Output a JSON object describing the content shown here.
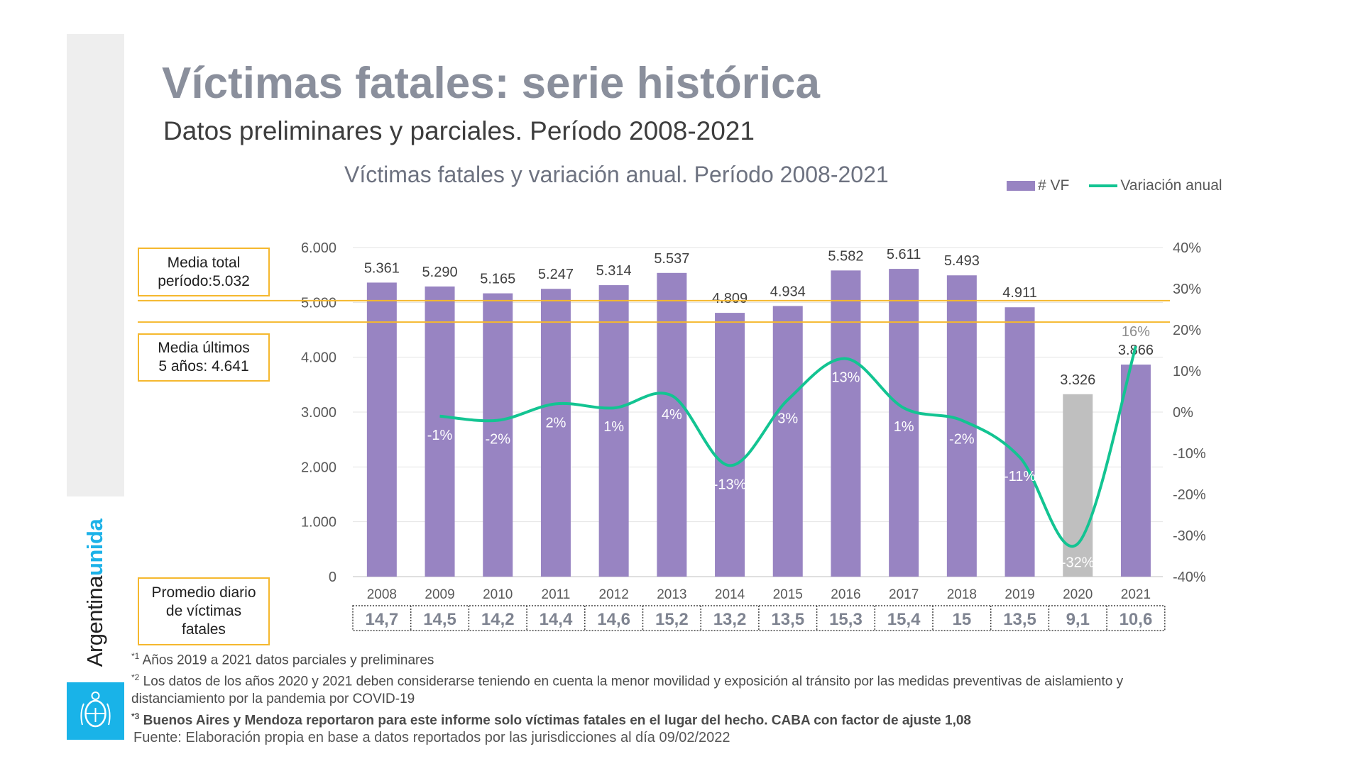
{
  "page": {
    "title": "Víctimas fatales: serie histórica",
    "subtitle": "Datos preliminares y parciales. Período 2008-2021"
  },
  "brand": {
    "name_part1": "Argentina",
    "name_part2": "unida",
    "emblem": "argentina-coat-of-arms-icon"
  },
  "legend": {
    "bars_label": "# VF",
    "line_label": "Variación anual"
  },
  "notes": {
    "media_total": "Media total\nperíodo:5.032",
    "media_ultimos": "Media últimos\n5 años: 4.641",
    "promedio_diario": "Promedio diario\nde víctimas\nfatales"
  },
  "chart_data": {
    "type": "bar+line",
    "title": "Víctimas fatales y variación anual. Período 2008-2021",
    "categories": [
      "2008",
      "2009",
      "2010",
      "2011",
      "2012",
      "2013",
      "2014",
      "2015",
      "2016",
      "2017",
      "2018",
      "2019",
      "2020",
      "2021"
    ],
    "series": [
      {
        "name": "# VF",
        "axis": "left",
        "values": [
          5361,
          5290,
          5165,
          5247,
          5314,
          5537,
          4809,
          4934,
          5582,
          5611,
          5493,
          4911,
          3326,
          3866
        ],
        "labels": [
          "5.361",
          "5.290",
          "5.165",
          "5.247",
          "5.314",
          "5.537",
          "4.809",
          "4.934",
          "5.582",
          "5.611",
          "5.493",
          "4.911",
          "3.326",
          "3.866"
        ],
        "highlight_category": "2020"
      },
      {
        "name": "Variación anual",
        "axis": "right",
        "values": [
          null,
          -1,
          -2,
          2,
          1,
          4,
          -13,
          3,
          13,
          1,
          -2,
          -11,
          -32,
          16
        ],
        "labels": [
          "",
          "-1%",
          "-2%",
          "2%",
          "1%",
          "4%",
          "-13%",
          "3%",
          "13%",
          "1%",
          "-2%",
          "-11%",
          "-32%",
          "16%"
        ]
      }
    ],
    "left_axis": {
      "min": 0,
      "max": 6000,
      "ticks": [
        "0",
        "1.000",
        "2.000",
        "3.000",
        "4.000",
        "5.000",
        "6.000"
      ]
    },
    "right_axis": {
      "min": -40,
      "max": 40,
      "ticks": [
        "-40%",
        "-30%",
        "-20%",
        "-10%",
        "0%",
        "10%",
        "20%",
        "30%",
        "40%"
      ]
    },
    "reference_lines": [
      {
        "label": "Media total período",
        "value": 5032
      },
      {
        "label": "Media últimos 5 años",
        "value": 4641
      }
    ],
    "daily_average": [
      "14,7",
      "14,5",
      "14,2",
      "14,4",
      "14,6",
      "15,2",
      "13,2",
      "13,5",
      "15,3",
      "15,4",
      "15",
      "13,5",
      "9,1",
      "10,6"
    ]
  },
  "colors": {
    "bar": "#9884c2",
    "bar_highlight": "#bfbfbf",
    "line": "#13c492",
    "reference_line": "#f5b82e",
    "brand_blue": "#19b3e8"
  },
  "footnotes": {
    "n1_sup": "*1",
    "n1_text": " Años 2019 a 2021 datos parciales y preliminares",
    "n2_sup": "*2",
    "n2_text": " Los datos de los años 2020 y 2021 deben considerarse teniendo en cuenta la menor movilidad y exposición al tránsito por las medidas preventivas de aislamiento y distanciamiento por la pandemia por COVID-19",
    "n3_sup": "*3",
    "n3_text": " Buenos Aires y Mendoza reportaron para este informe solo víctimas fatales en el lugar del hecho. CABA con factor de ajuste 1,08",
    "source": "Fuente: Elaboración propia en base a datos reportados por las jurisdicciones al día 09/02/2022"
  }
}
